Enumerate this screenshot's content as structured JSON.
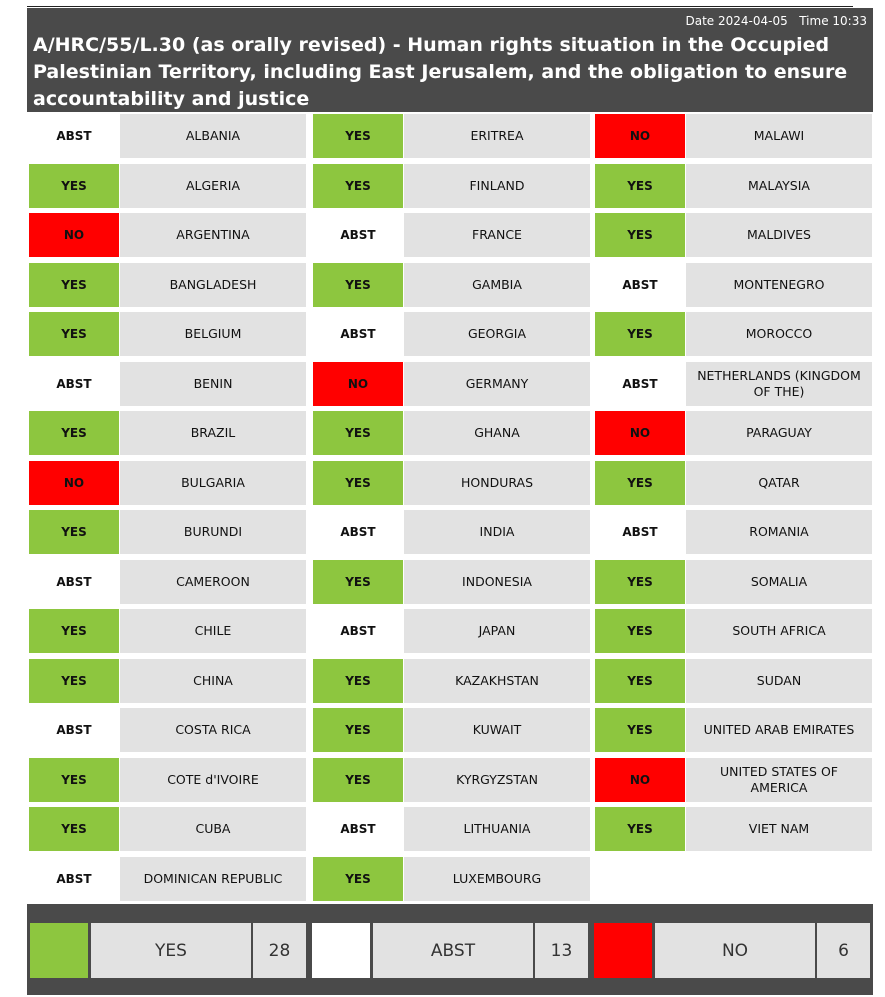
{
  "header": {
    "date_label": "Date",
    "date": "2024-04-05",
    "time_label": "Time",
    "time": "10:33",
    "title": "A/HRC/55/L.30 (as orally revised) - Human rights situation in the Occupied Palestinian Territory, including East Jerusalem, and the obligation to ensure accountability and justice"
  },
  "colors": {
    "yes": "#8dc63f",
    "abst": "#ffffff",
    "no": "#ff0000",
    "header_bg": "#4a4a4a",
    "cell_bg": "#e2e2e2"
  },
  "columns": [
    [
      {
        "vote": "ABST",
        "country": "ALBANIA"
      },
      {
        "vote": "YES",
        "country": "ALGERIA"
      },
      {
        "vote": "NO",
        "country": "ARGENTINA"
      },
      {
        "vote": "YES",
        "country": "BANGLADESH"
      },
      {
        "vote": "YES",
        "country": "BELGIUM"
      },
      {
        "vote": "ABST",
        "country": "BENIN"
      },
      {
        "vote": "YES",
        "country": "BRAZIL"
      },
      {
        "vote": "NO",
        "country": "BULGARIA"
      },
      {
        "vote": "YES",
        "country": "BURUNDI"
      },
      {
        "vote": "ABST",
        "country": "CAMEROON"
      },
      {
        "vote": "YES",
        "country": "CHILE"
      },
      {
        "vote": "YES",
        "country": "CHINA"
      },
      {
        "vote": "ABST",
        "country": "COSTA RICA"
      },
      {
        "vote": "YES",
        "country": "COTE d'IVOIRE"
      },
      {
        "vote": "YES",
        "country": "CUBA"
      },
      {
        "vote": "ABST",
        "country": "DOMINICAN REPUBLIC"
      }
    ],
    [
      {
        "vote": "YES",
        "country": "ERITREA"
      },
      {
        "vote": "YES",
        "country": "FINLAND"
      },
      {
        "vote": "ABST",
        "country": "FRANCE"
      },
      {
        "vote": "YES",
        "country": "GAMBIA"
      },
      {
        "vote": "ABST",
        "country": "GEORGIA"
      },
      {
        "vote": "NO",
        "country": "GERMANY"
      },
      {
        "vote": "YES",
        "country": "GHANA"
      },
      {
        "vote": "YES",
        "country": "HONDURAS"
      },
      {
        "vote": "ABST",
        "country": "INDIA"
      },
      {
        "vote": "YES",
        "country": "INDONESIA"
      },
      {
        "vote": "ABST",
        "country": "JAPAN"
      },
      {
        "vote": "YES",
        "country": "KAZAKHSTAN"
      },
      {
        "vote": "YES",
        "country": "KUWAIT"
      },
      {
        "vote": "YES",
        "country": "KYRGYZSTAN"
      },
      {
        "vote": "ABST",
        "country": "LITHUANIA"
      },
      {
        "vote": "YES",
        "country": "LUXEMBOURG"
      }
    ],
    [
      {
        "vote": "NO",
        "country": "MALAWI"
      },
      {
        "vote": "YES",
        "country": "MALAYSIA"
      },
      {
        "vote": "YES",
        "country": "MALDIVES"
      },
      {
        "vote": "ABST",
        "country": "MONTENEGRO"
      },
      {
        "vote": "YES",
        "country": "MOROCCO"
      },
      {
        "vote": "ABST",
        "country": "NETHERLANDS (KINGDOM OF THE)"
      },
      {
        "vote": "NO",
        "country": "PARAGUAY"
      },
      {
        "vote": "YES",
        "country": "QATAR"
      },
      {
        "vote": "ABST",
        "country": "ROMANIA"
      },
      {
        "vote": "YES",
        "country": "SOMALIA"
      },
      {
        "vote": "YES",
        "country": "SOUTH AFRICA"
      },
      {
        "vote": "YES",
        "country": "SUDAN"
      },
      {
        "vote": "YES",
        "country": "UNITED ARAB EMIRATES"
      },
      {
        "vote": "NO",
        "country": "UNITED STATES OF AMERICA"
      },
      {
        "vote": "YES",
        "country": "VIET NAM"
      }
    ]
  ],
  "summary": {
    "yes": {
      "label": "YES",
      "count": "28"
    },
    "abst": {
      "label": "ABST",
      "count": "13"
    },
    "no": {
      "label": "NO",
      "count": "6"
    }
  }
}
